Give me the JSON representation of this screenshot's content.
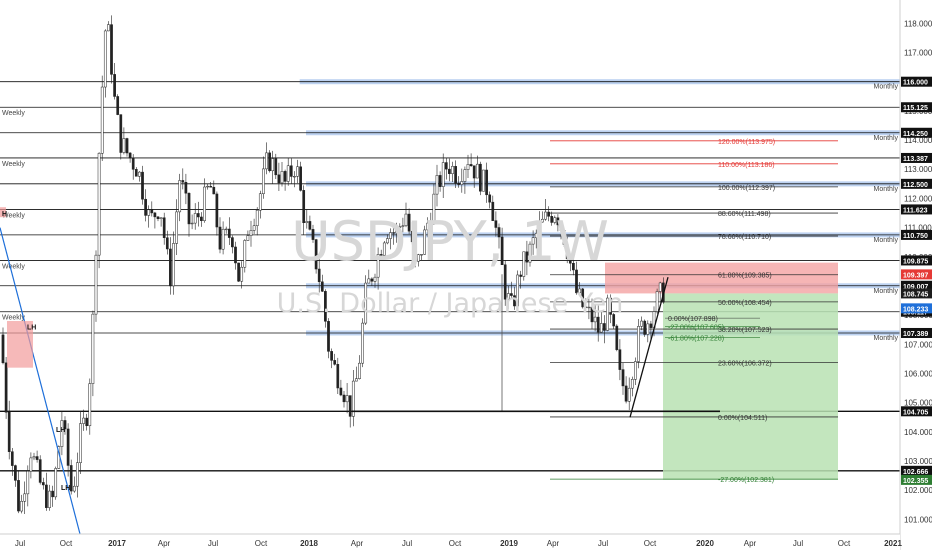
{
  "chart_data": {
    "type": "candlestick",
    "watermark": {
      "symbol": "USDJPY, 1W",
      "description": "U.S. Dollar / Japanese Yen"
    },
    "x_axis": {
      "labels": [
        "Jul",
        "Oct",
        "2017",
        "Apr",
        "Jul",
        "Oct",
        "2018",
        "Apr",
        "Jul",
        "Oct",
        "2019",
        "Apr",
        "Jul",
        "Oct",
        "2020",
        "Apr",
        "Jul",
        "Oct",
        "2021"
      ]
    },
    "y_axis": {
      "range": [
        100.5,
        118.8
      ],
      "ticks": [
        "118.000",
        "117.000",
        "116.000",
        "115.000",
        "114.000",
        "113.000",
        "112.000",
        "111.000",
        "110.000",
        "109.000",
        "108.000",
        "107.000",
        "106.000",
        "105.000",
        "104.000",
        "103.000",
        "102.000",
        "101.000"
      ]
    },
    "horizontal_levels": [
      {
        "value": 116.0,
        "label": "116.000",
        "right_tag": "Monthly",
        "left_tag": "",
        "zone": true,
        "zone_start": 0.333
      },
      {
        "value": 115.125,
        "label": "115.125",
        "right_tag": "",
        "left_tag": "Weekly",
        "zone": false
      },
      {
        "value": 114.25,
        "label": "114.250",
        "right_tag": "Monthly",
        "left_tag": "",
        "zone": true,
        "zone_start": 0.34
      },
      {
        "value": 113.387,
        "label": "113.387",
        "right_tag": "",
        "left_tag": "Weekly",
        "zone": false
      },
      {
        "value": 112.5,
        "label": "112.500",
        "right_tag": "Monthly",
        "left_tag": "",
        "zone": true,
        "zone_start": 0.34
      },
      {
        "value": 111.623,
        "label": "111.623",
        "right_tag": "",
        "left_tag": "Weekly",
        "zone": false
      },
      {
        "value": 110.75,
        "label": "110.750",
        "right_tag": "Monthly",
        "left_tag": "",
        "zone": true,
        "zone_start": 0.34
      },
      {
        "value": 109.875,
        "label": "109.875",
        "right_tag": "",
        "left_tag": "Weekly",
        "zone": false
      },
      {
        "value": 109.007,
        "label": "109.007",
        "right_tag": "Monthly",
        "left_tag": "",
        "zone": true,
        "zone_start": 0.34
      },
      {
        "value": 108.117,
        "label": "108.117",
        "right_tag": "",
        "left_tag": "Weekly",
        "zone": false
      },
      {
        "value": 107.389,
        "label": "107.389",
        "right_tag": "Monthly",
        "left_tag": "",
        "zone": true,
        "zone_start": 0.34
      },
      {
        "value": 104.705,
        "label": "104.705",
        "right_tag": "",
        "left_tag": "",
        "zone": false
      },
      {
        "value": 102.666,
        "label": "102.666",
        "right_tag": "",
        "left_tag": "",
        "zone": false
      }
    ],
    "price_tags": [
      {
        "label": "109.397",
        "value": 109.397,
        "color": "#e53935"
      },
      {
        "label": "108.745",
        "value": 108.745,
        "color": "#1c1c1c"
      },
      {
        "label": "108.233",
        "value": 108.233,
        "color": "#1e6fd9"
      },
      {
        "label": "102.355",
        "value": 102.355,
        "color": "#2e7d32"
      }
    ],
    "fibonacci": {
      "levels": [
        {
          "text": "120.00%(113.975)",
          "value": 113.975,
          "color": "#e53935"
        },
        {
          "text": "110.00%(113.186)",
          "value": 113.186,
          "color": "#e53935"
        },
        {
          "text": "100.00%(112.397)",
          "value": 112.397,
          "color": "#333333"
        },
        {
          "text": "88.60%(111.498)",
          "value": 111.498,
          "color": "#333333"
        },
        {
          "text": "78.60%(110.710)",
          "value": 110.71,
          "color": "#333333"
        },
        {
          "text": "61.80%(109.385)",
          "value": 109.385,
          "color": "#333333"
        },
        {
          "text": "50.00%(108.454)",
          "value": 108.454,
          "color": "#333333"
        },
        {
          "text": "38.20%(107.523)",
          "value": 107.523,
          "color": "#333333"
        },
        {
          "text": "23.60%(106.372)",
          "value": 106.372,
          "color": "#333333"
        },
        {
          "text": "0.00%(104.511)",
          "value": 104.511,
          "color": "#333333"
        },
        {
          "text": "-27.00%(102.381)",
          "value": 102.381,
          "color": "#2e7d32"
        }
      ],
      "small_levels": [
        {
          "text": "0.00%(107.898)",
          "value": 107.898,
          "color": "#333333"
        },
        {
          "text": "-27.00%(107.605)",
          "value": 107.605,
          "color": "#2e7d32"
        },
        {
          "text": "-61.80%(107.228)",
          "value": 107.228,
          "color": "#2e7d32"
        }
      ]
    },
    "position": {
      "entry": 108.745,
      "stop": 109.397,
      "target": 102.355
    },
    "annotations": [
      {
        "text": "LH"
      },
      {
        "text": "LH"
      },
      {
        "text": "LH"
      },
      {
        "text": "H"
      }
    ]
  }
}
